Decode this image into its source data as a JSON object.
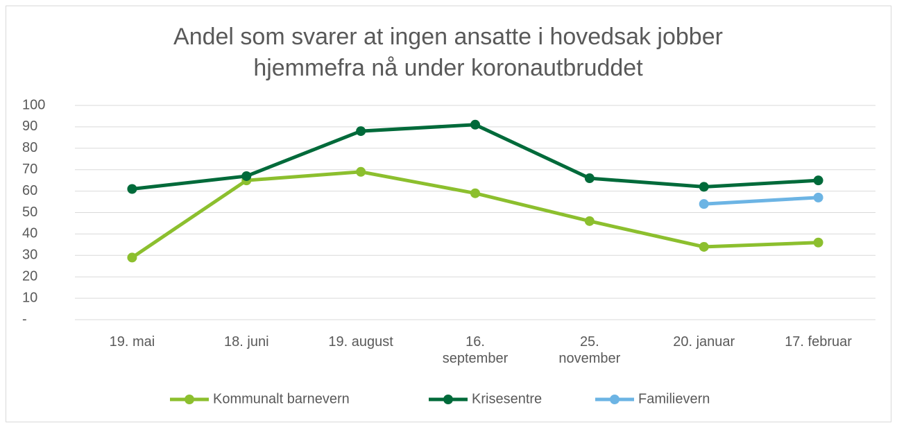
{
  "chart_data": {
    "type": "line",
    "title": "Andel som svarer at ingen ansatte i hovedsak jobber hjemmefra nå under koronautbruddet",
    "categories": [
      "19. mai",
      "18. juni",
      "19. august",
      "16. september",
      "25. november",
      "20. januar",
      "17. februar"
    ],
    "series": [
      {
        "name": "Kommunalt barnevern",
        "color": "#8cbf2e",
        "values": [
          29,
          65,
          69,
          59,
          46,
          34,
          36
        ]
      },
      {
        "name": "Krisesentre",
        "color": "#006a3a",
        "values": [
          61,
          67,
          88,
          91,
          66,
          62,
          65
        ]
      },
      {
        "name": "Familievern",
        "color": "#6cb4e4",
        "values": [
          null,
          null,
          null,
          null,
          null,
          54,
          57
        ]
      }
    ],
    "ylim": [
      0,
      100
    ],
    "yticks": [
      {
        "value": 0,
        "label": "-"
      },
      10,
      20,
      30,
      40,
      50,
      60,
      70,
      80,
      90,
      100
    ],
    "grid": true,
    "legend": "bottom"
  }
}
